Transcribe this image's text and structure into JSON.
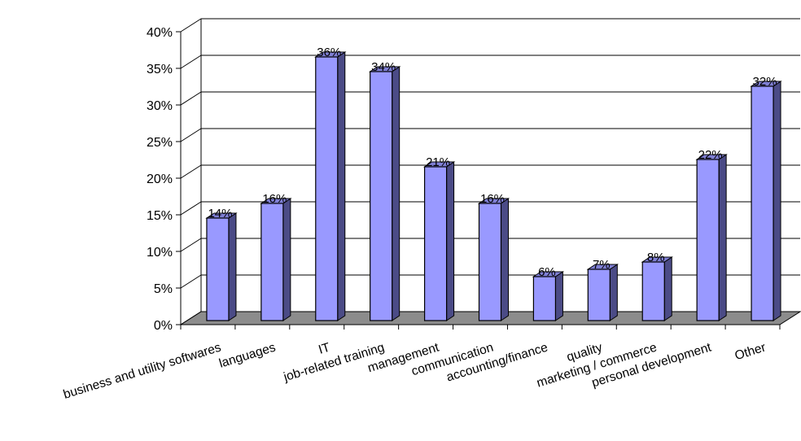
{
  "chart_data": {
    "type": "bar",
    "style": "3d-column",
    "title": "",
    "xlabel": "",
    "ylabel": "",
    "ylim": [
      0,
      40
    ],
    "ytick_step": 5,
    "ytick_format": "percent",
    "grid": true,
    "legend": "none",
    "colors": {
      "bar_front": "#9999ff",
      "bar_side": "#4b4b86",
      "bar_top": "#7f7fd4",
      "floor": "#8c8c8c",
      "grid": "#000000"
    },
    "categories": [
      "business and utility softwares",
      "languages",
      "IT",
      "job-related training",
      "management",
      "communication",
      "accounting/finance",
      "quality",
      "marketing / commerce",
      "personal development",
      "Other"
    ],
    "values": [
      14,
      16,
      36,
      34,
      21,
      16,
      6,
      7,
      8,
      22,
      32
    ],
    "data_labels": [
      "14%",
      "16%",
      "36%",
      "34%",
      "21%",
      "16%",
      "6%",
      "7%",
      "8%",
      "22%",
      "32%"
    ]
  }
}
